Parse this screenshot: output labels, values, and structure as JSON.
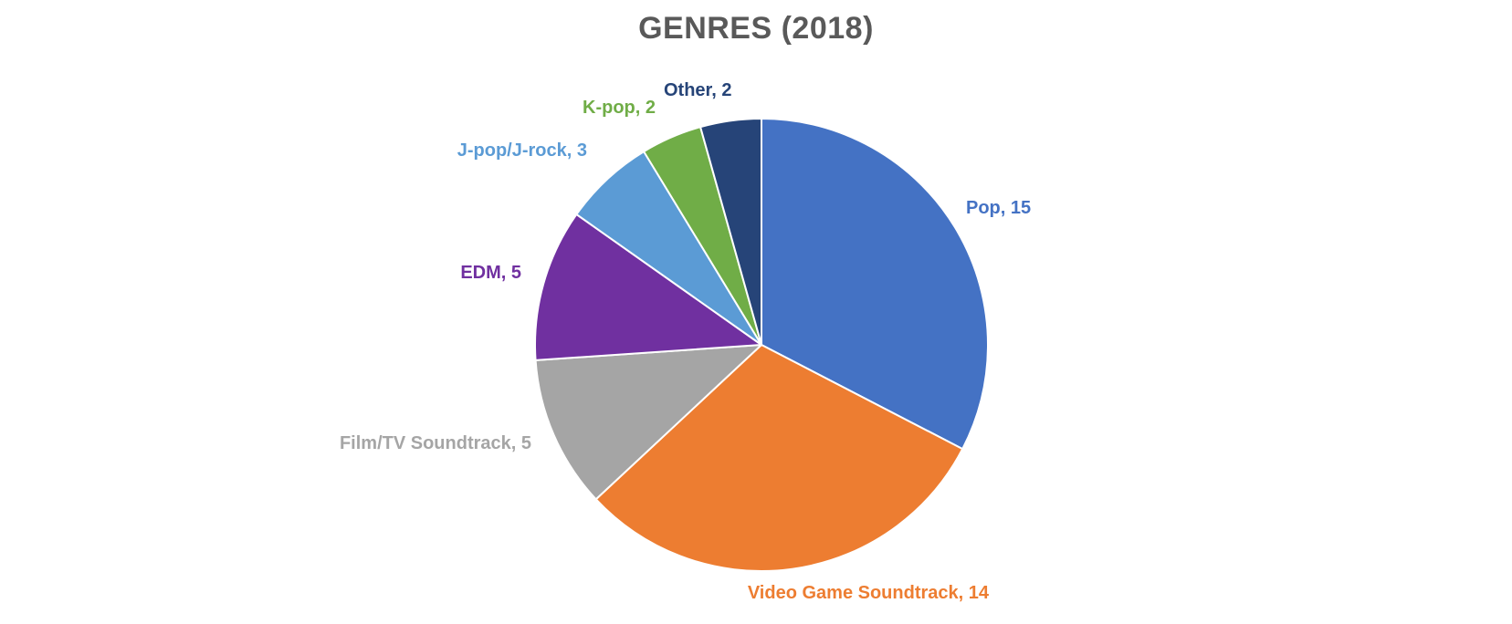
{
  "chart_data": {
    "type": "pie",
    "title": "GENRES (2018)",
    "slices": [
      {
        "label": "Pop",
        "value": 15,
        "display": "Pop, 15",
        "color": "#4472C4"
      },
      {
        "label": "Video Game Soundtrack",
        "value": 14,
        "display": "Video Game Soundtrack, 14",
        "color": "#ED7D31"
      },
      {
        "label": "Film/TV Soundtrack",
        "value": 5,
        "display": "Film/TV Soundtrack, 5",
        "color": "#A5A5A5"
      },
      {
        "label": "EDM",
        "value": 5,
        "display": "EDM, 5",
        "color": "#7030A0"
      },
      {
        "label": "J-pop/J-rock",
        "value": 3,
        "display": "J-pop/J-rock, 3",
        "color": "#5B9BD5"
      },
      {
        "label": "K-pop",
        "value": 2,
        "display": "K-pop, 2",
        "color": "#70AD47"
      },
      {
        "label": "Other",
        "value": 2,
        "display": "Other, 2",
        "color": "#264478"
      }
    ],
    "legend": "none",
    "start_angle": "12 o'clock",
    "direction": "clockwise"
  }
}
